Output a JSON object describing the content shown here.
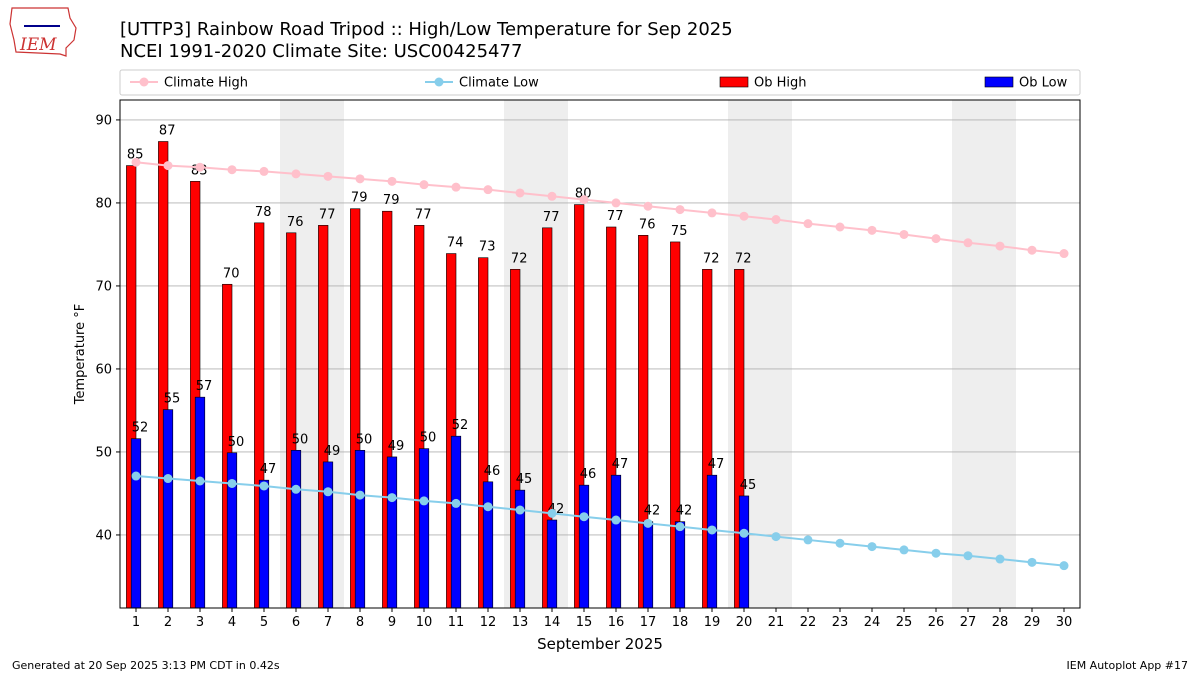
{
  "chart_data": {
    "type": "bar",
    "title": "[UTTP3] Rainbow Road Tripod  :: High/Low Temperature for Sep 2025",
    "subtitle": "NCEI 1991-2020 Climate Site: USC00425477",
    "xlabel": "September 2025",
    "ylabel": "Temperature °F",
    "logo": "IEM",
    "footer_left": "Generated at 20 Sep 2025 3:13 PM CDT in 0.42s",
    "footer_right": "IEM Autoplot App #17",
    "x": [
      1,
      2,
      3,
      4,
      5,
      6,
      7,
      8,
      9,
      10,
      11,
      12,
      13,
      14,
      15,
      16,
      17,
      18,
      19,
      20,
      21,
      22,
      23,
      24,
      25,
      26,
      27,
      28,
      29,
      30
    ],
    "xlim": [
      0.5,
      30.5
    ],
    "xticks": [
      1,
      2,
      3,
      4,
      5,
      6,
      7,
      8,
      9,
      10,
      11,
      12,
      13,
      14,
      15,
      16,
      17,
      18,
      19,
      20,
      21,
      22,
      23,
      24,
      25,
      26,
      27,
      28,
      29,
      30
    ],
    "ylim": [
      31.2,
      92.4
    ],
    "yticks": [
      40,
      50,
      60,
      70,
      80,
      90
    ],
    "grid": true,
    "series": [
      {
        "name": "Climate High",
        "type": "line",
        "color": "#ffc0cb",
        "values": [
          84.9,
          84.5,
          84.3,
          84.0,
          83.8,
          83.5,
          83.2,
          82.9,
          82.6,
          82.2,
          81.9,
          81.6,
          81.2,
          80.8,
          80.4,
          80.0,
          79.6,
          79.2,
          78.8,
          78.4,
          78.0,
          77.5,
          77.1,
          76.7,
          76.2,
          75.7,
          75.2,
          74.8,
          74.3,
          73.9
        ]
      },
      {
        "name": "Climate Low",
        "type": "line",
        "color": "#87ceeb",
        "values": [
          47.1,
          46.8,
          46.5,
          46.2,
          45.9,
          45.5,
          45.2,
          44.8,
          44.5,
          44.1,
          43.8,
          43.4,
          43.0,
          42.6,
          42.2,
          41.8,
          41.4,
          41.0,
          40.6,
          40.2,
          39.8,
          39.4,
          39.0,
          38.6,
          38.2,
          37.8,
          37.5,
          37.1,
          36.7,
          36.3
        ]
      },
      {
        "name": "Ob High",
        "type": "bar",
        "color": "#ff0000",
        "values": [
          84.5,
          87.4,
          82.6,
          70.2,
          77.6,
          76.4,
          77.3,
          79.3,
          79.0,
          77.3,
          73.9,
          73.4,
          72.0,
          77.0,
          79.8,
          77.1,
          76.1,
          75.3,
          72.0,
          72.0,
          null,
          null,
          null,
          null,
          null,
          null,
          null,
          null,
          null,
          null
        ],
        "value_labels": [
          "85",
          "87",
          "83",
          "70",
          "78",
          "76",
          "77",
          "79",
          "79",
          "77",
          "74",
          "73",
          "72",
          "77",
          "80",
          "77",
          "76",
          "75",
          "72",
          "72",
          null,
          null,
          null,
          null,
          null,
          null,
          null,
          null,
          null,
          null
        ]
      },
      {
        "name": "Ob Low",
        "type": "bar",
        "color": "#0000ff",
        "values": [
          51.6,
          55.1,
          56.6,
          49.9,
          46.6,
          50.2,
          48.8,
          50.2,
          49.4,
          50.4,
          51.9,
          46.4,
          45.4,
          41.8,
          46.0,
          47.2,
          41.6,
          41.6,
          47.2,
          44.7,
          null,
          null,
          null,
          null,
          null,
          null,
          null,
          null,
          null,
          null
        ],
        "value_labels": [
          "52",
          "55",
          "57",
          "50",
          "47",
          "50",
          "49",
          "50",
          "49",
          "50",
          "52",
          "46",
          "45",
          "42",
          "46",
          "47",
          "42",
          "42",
          "47",
          "45",
          null,
          null,
          null,
          null,
          null,
          null,
          null,
          null,
          null,
          null
        ]
      }
    ]
  }
}
